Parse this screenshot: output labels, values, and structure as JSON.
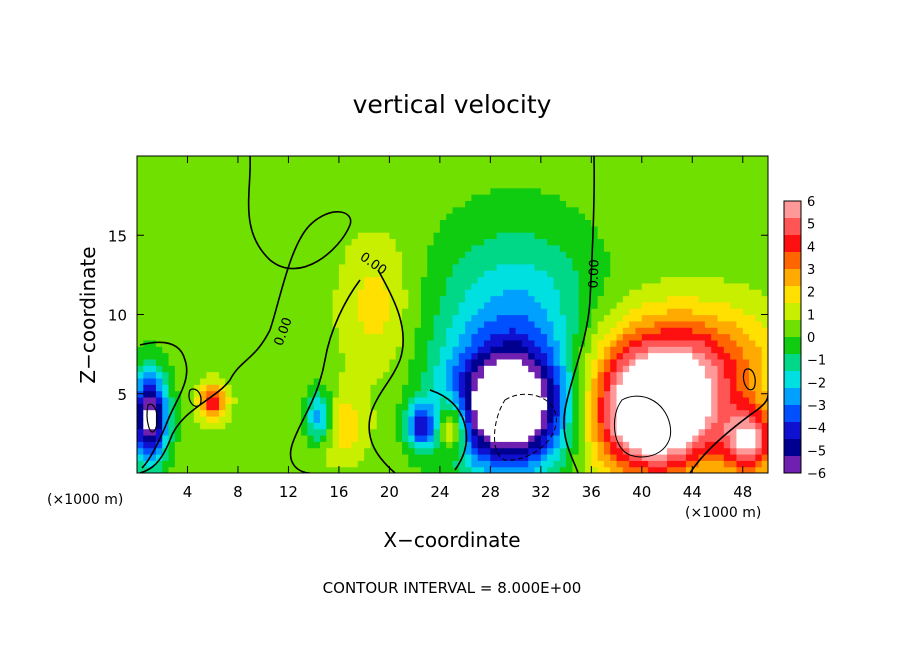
{
  "chart_data": {
    "type": "heatmap",
    "title": "vertical velocity",
    "xlabel": "X−coordinate",
    "ylabel": "Z−coordinate",
    "x_unit_left": "(×1000 m)",
    "x_unit_right": "(×1000 m)",
    "footer": "CONTOUR INTERVAL = 8.000E+00",
    "xlim": [
      0,
      50
    ],
    "ylim": [
      0,
      20
    ],
    "x_ticks": [
      4,
      8,
      12,
      16,
      20,
      24,
      28,
      32,
      36,
      40,
      44,
      48
    ],
    "y_ticks": [
      5,
      10,
      15
    ],
    "colorbar": {
      "ticks": [
        6,
        5,
        4,
        3,
        2,
        1,
        0,
        -1,
        -2,
        -3,
        -4,
        -5,
        -6
      ],
      "tick_labels": [
        "6",
        "5",
        "4",
        "3",
        "2",
        "1",
        "0",
        "−1",
        "−2",
        "−3",
        "−4",
        "−5",
        "−6"
      ],
      "colors": [
        "#ff9999",
        "#ff5555",
        "#ff1010",
        "#ff6600",
        "#ffaa00",
        "#ffe000",
        "#c8ee00",
        "#70e000",
        "#10cc10",
        "#00d888",
        "#00e0e0",
        "#00a0ff",
        "#0050ff",
        "#1010d0",
        "#000090",
        "#7020b0"
      ]
    },
    "contour_labels": [
      "0.00",
      "0.00",
      "0.00"
    ],
    "features": [
      {
        "x": 29.5,
        "z": 4.0,
        "sx": 3.2,
        "sy": 2.6,
        "value": -8
      },
      {
        "x": 30.0,
        "z": 9.0,
        "sx": 4.5,
        "sy": 4.5,
        "value": -3
      },
      {
        "x": 1.0,
        "z": 3.5,
        "sx": 1.0,
        "sy": 2.0,
        "value": -7
      },
      {
        "x": 41.0,
        "z": 3.5,
        "sx": 3.5,
        "sy": 2.5,
        "value": 8
      },
      {
        "x": 43.0,
        "z": 7.0,
        "sx": 5.0,
        "sy": 2.5,
        "value": 4
      },
      {
        "x": 48.5,
        "z": 2.0,
        "sx": 1.5,
        "sy": 1.5,
        "value": 5
      },
      {
        "x": 14.5,
        "z": 3.5,
        "sx": 0.8,
        "sy": 1.2,
        "value": -4
      },
      {
        "x": 22.5,
        "z": 3.0,
        "sx": 0.8,
        "sy": 1.0,
        "value": -4
      },
      {
        "x": 25.0,
        "z": 3.0,
        "sx": 0.8,
        "sy": 1.2,
        "value": 4
      },
      {
        "x": 6.0,
        "z": 4.5,
        "sx": 0.8,
        "sy": 0.8,
        "value": 4
      },
      {
        "x": 19.0,
        "z": 10.5,
        "sx": 2.0,
        "sy": 3.0,
        "value": 1.5
      },
      {
        "x": 16.0,
        "z": 3.0,
        "sx": 1.5,
        "sy": 1.5,
        "value": 2
      }
    ]
  }
}
